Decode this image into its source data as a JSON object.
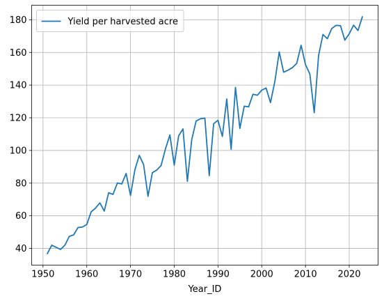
{
  "chart_data": {
    "type": "line",
    "title": "",
    "xlabel": "Year_ID",
    "ylabel": "",
    "xlim": [
      1947.4,
      2026.6
    ],
    "ylim": [
      29.8,
      188.9
    ],
    "x_ticks": [
      1950,
      1960,
      1970,
      1980,
      1990,
      2000,
      2010,
      2020
    ],
    "y_ticks": [
      40,
      60,
      80,
      100,
      120,
      140,
      160,
      180
    ],
    "grid": true,
    "legend_position": "top-left",
    "series": [
      {
        "name": "Yield per harvested acre",
        "color": "#1f77b4",
        "x": [
          1951,
          1952,
          1953,
          1954,
          1955,
          1956,
          1957,
          1958,
          1959,
          1960,
          1961,
          1962,
          1963,
          1964,
          1965,
          1966,
          1967,
          1968,
          1969,
          1970,
          1971,
          1972,
          1973,
          1974,
          1975,
          1976,
          1977,
          1978,
          1979,
          1980,
          1981,
          1982,
          1983,
          1984,
          1985,
          1986,
          1987,
          1988,
          1989,
          1990,
          1991,
          1992,
          1993,
          1994,
          1995,
          1996,
          1997,
          1998,
          1999,
          2000,
          2001,
          2002,
          2003,
          2004,
          2005,
          2006,
          2007,
          2008,
          2009,
          2010,
          2011,
          2012,
          2013,
          2014,
          2015,
          2016,
          2017,
          2018,
          2019,
          2020,
          2021,
          2022,
          2023
        ],
        "values": [
          36.9,
          42.0,
          40.7,
          39.4,
          42.0,
          47.4,
          48.3,
          52.8,
          53.1,
          54.7,
          62.4,
          64.7,
          67.9,
          62.9,
          74.1,
          73.1,
          80.1,
          79.5,
          85.9,
          72.4,
          88.1,
          97.0,
          91.3,
          71.9,
          86.4,
          88.0,
          90.8,
          101.0,
          109.5,
          91.0,
          108.9,
          113.2,
          81.1,
          106.7,
          118.0,
          119.4,
          119.8,
          84.6,
          116.3,
          118.5,
          108.6,
          131.5,
          100.7,
          138.6,
          113.5,
          127.1,
          126.7,
          134.4,
          133.8,
          136.9,
          138.2,
          129.3,
          142.2,
          160.3,
          147.9,
          149.1,
          150.7,
          153.3,
          164.4,
          152.6,
          146.8,
          123.1,
          158.1,
          171.0,
          168.4,
          174.6,
          176.6,
          176.4,
          167.5,
          171.4,
          176.7,
          173.4,
          181.8
        ]
      }
    ]
  }
}
